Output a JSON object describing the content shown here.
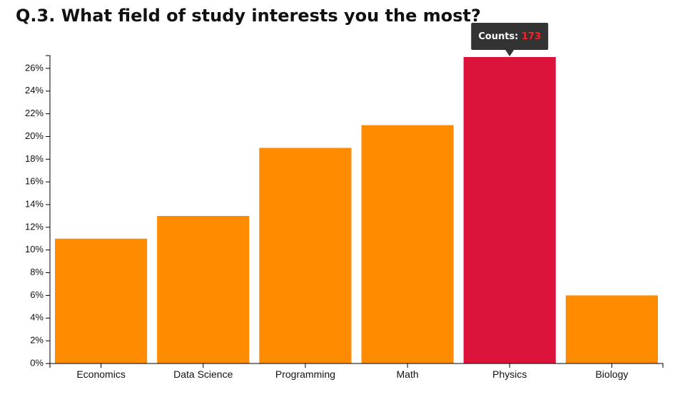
{
  "chart_data": {
    "type": "bar",
    "title": "Q.3. What field of study interests you the most?",
    "categories": [
      "Economics",
      "Data Science",
      "Programming",
      "Math",
      "Physics",
      "Biology"
    ],
    "values": [
      11,
      13,
      19,
      21,
      27,
      6
    ],
    "value_format": "percent",
    "ylim": [
      0,
      27
    ],
    "yticks": [
      0,
      2,
      4,
      6,
      8,
      10,
      12,
      14,
      16,
      18,
      20,
      22,
      24,
      26
    ],
    "xlabel": "",
    "ylabel": "",
    "grid": false,
    "colors": {
      "bar": "#ff8c00",
      "highlight": "#dc143c",
      "tooltip_bg": "#333333",
      "tooltip_label": "#ffffff",
      "tooltip_value": "#ff2020"
    },
    "highlighted_index": 4,
    "tooltip": {
      "label": "Counts:",
      "value": "173"
    }
  }
}
